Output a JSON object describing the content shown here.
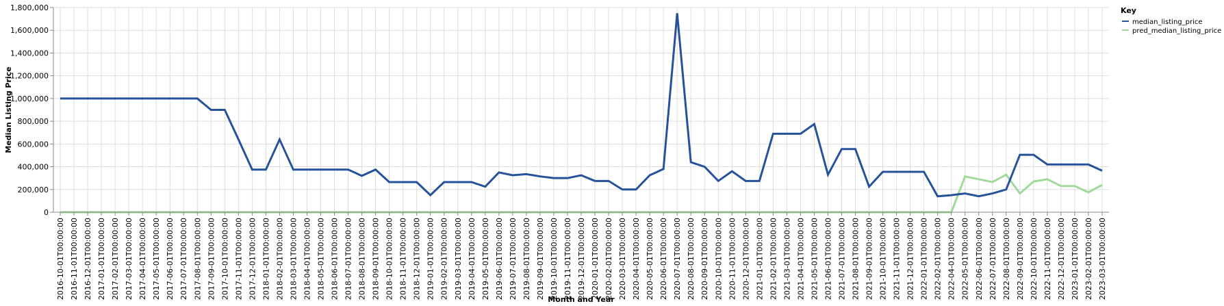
{
  "chart_data": {
    "type": "line",
    "xlabel": "Month and Year",
    "ylabel": "Median Listing Price",
    "ylim": [
      0,
      1800000
    ],
    "yticks": [
      0,
      200000,
      400000,
      600000,
      800000,
      1000000,
      1200000,
      1400000,
      1600000,
      1800000
    ],
    "ytick_labels": [
      "0",
      "200,000",
      "400,000",
      "600,000",
      "800,000",
      "1,000,000",
      "1,200,000",
      "1,400,000",
      "1,600,000",
      "1,800,000"
    ],
    "grid": true,
    "legend": {
      "title": "Key",
      "position": "top-right"
    },
    "x": [
      "2016-10-01T00:00:00",
      "2016-11-01T00:00:00",
      "2016-12-01T00:00:00",
      "2017-01-01T00:00:00",
      "2017-02-01T00:00:00",
      "2017-03-01T00:00:00",
      "2017-04-01T00:00:00",
      "2017-05-01T00:00:00",
      "2017-06-01T00:00:00",
      "2017-07-01T00:00:00",
      "2017-08-01T00:00:00",
      "2017-09-01T00:00:00",
      "2017-10-01T00:00:00",
      "2017-11-01T00:00:00",
      "2017-12-01T00:00:00",
      "2018-01-01T00:00:00",
      "2018-02-01T00:00:00",
      "2018-03-01T00:00:00",
      "2018-04-01T00:00:00",
      "2018-05-01T00:00:00",
      "2018-06-01T00:00:00",
      "2018-07-01T00:00:00",
      "2018-08-01T00:00:00",
      "2018-09-01T00:00:00",
      "2018-10-01T00:00:00",
      "2018-11-01T00:00:00",
      "2018-12-01T00:00:00",
      "2019-01-01T00:00:00",
      "2019-02-01T00:00:00",
      "2019-03-01T00:00:00",
      "2019-04-01T00:00:00",
      "2019-05-01T00:00:00",
      "2019-06-01T00:00:00",
      "2019-07-01T00:00:00",
      "2019-08-01T00:00:00",
      "2019-09-01T00:00:00",
      "2019-10-01T00:00:00",
      "2019-11-01T00:00:00",
      "2019-12-01T00:00:00",
      "2020-01-01T00:00:00",
      "2020-02-01T00:00:00",
      "2020-03-01T00:00:00",
      "2020-04-01T00:00:00",
      "2020-05-01T00:00:00",
      "2020-06-01T00:00:00",
      "2020-07-01T00:00:00",
      "2020-08-01T00:00:00",
      "2020-09-01T00:00:00",
      "2020-10-01T00:00:00",
      "2020-11-01T00:00:00",
      "2020-12-01T00:00:00",
      "2021-01-01T00:00:00",
      "2021-02-01T00:00:00",
      "2021-03-01T00:00:00",
      "2021-04-01T00:00:00",
      "2021-05-01T00:00:00",
      "2021-06-01T00:00:00",
      "2021-07-01T00:00:00",
      "2021-08-01T00:00:00",
      "2021-09-01T00:00:00",
      "2021-10-01T00:00:00",
      "2021-11-01T00:00:00",
      "2021-12-01T00:00:00",
      "2022-01-01T00:00:00",
      "2022-02-01T00:00:00",
      "2022-04-01T00:00:00",
      "2022-05-01T00:00:00",
      "2022-06-01T00:00:00",
      "2022-07-01T00:00:00",
      "2022-08-01T00:00:00",
      "2022-09-01T00:00:00",
      "2022-10-01T00:00:00",
      "2022-11-01T00:00:00",
      "2022-12-01T00:00:00",
      "2023-01-01T00:00:00",
      "2023-02-01T00:00:00",
      "2023-03-01T00:00:00"
    ],
    "series": [
      {
        "name": "median_listing_price",
        "color": "#26529b",
        "values": [
          1000000,
          1000000,
          1000000,
          1000000,
          1000000,
          1000000,
          1000000,
          1000000,
          1000000,
          1000000,
          1000000,
          900000,
          900000,
          640000,
          375000,
          375000,
          640000,
          375000,
          375000,
          375000,
          375000,
          375000,
          320000,
          375000,
          265000,
          265000,
          265000,
          150000,
          265000,
          265000,
          265000,
          225000,
          350000,
          325000,
          335000,
          315000,
          300000,
          300000,
          325000,
          275000,
          275000,
          200000,
          200000,
          325000,
          380000,
          1750000,
          440000,
          400000,
          275000,
          360000,
          275000,
          275000,
          690000,
          690000,
          690000,
          775000,
          330000,
          555000,
          555000,
          225000,
          355000,
          355000,
          355000,
          355000,
          140000,
          150000,
          165000,
          140000,
          165000,
          200000,
          505000,
          505000,
          420000,
          420000,
          420000,
          420000,
          365000
        ]
      },
      {
        "name": "pred_median_listing_price",
        "color": "#a1d99b",
        "values": [
          0,
          0,
          0,
          0,
          0,
          0,
          0,
          0,
          0,
          0,
          0,
          0,
          0,
          0,
          0,
          0,
          0,
          0,
          0,
          0,
          0,
          0,
          0,
          0,
          0,
          0,
          0,
          0,
          0,
          0,
          0,
          0,
          0,
          0,
          0,
          0,
          0,
          0,
          0,
          0,
          0,
          0,
          0,
          0,
          0,
          0,
          0,
          0,
          0,
          0,
          0,
          0,
          0,
          0,
          0,
          0,
          0,
          0,
          0,
          0,
          0,
          0,
          0,
          0,
          0,
          0,
          315000,
          290000,
          265000,
          330000,
          165000,
          270000,
          290000,
          230000,
          230000,
          175000,
          240000
        ]
      }
    ]
  }
}
